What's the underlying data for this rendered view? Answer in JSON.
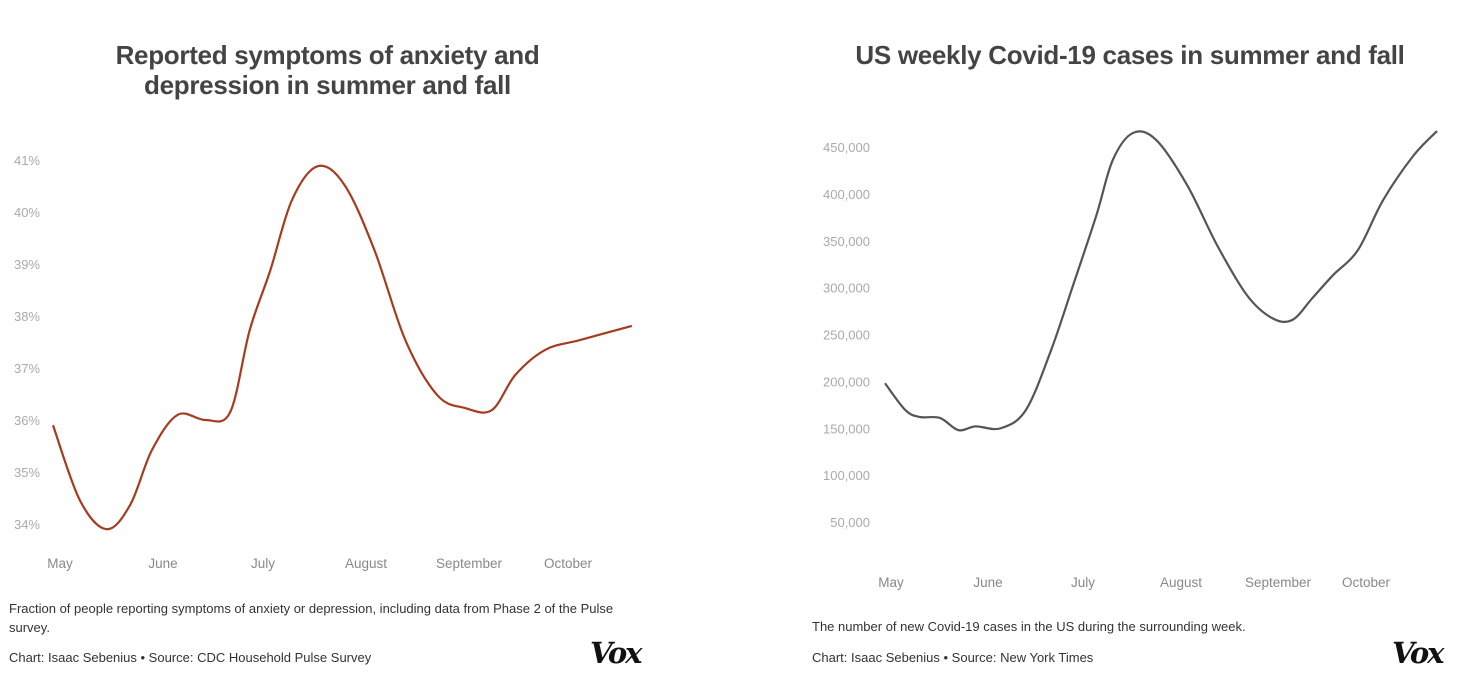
{
  "chart_data": [
    {
      "type": "line",
      "title": "Reported symptoms of anxiety and depression in summer and fall",
      "xlabel": "",
      "ylabel": "",
      "x_tick_labels": [
        "May",
        "June",
        "July",
        "August",
        "September",
        "October"
      ],
      "y_tick_labels": [
        "41%",
        "40%",
        "39%",
        "38%",
        "37%",
        "36%",
        "35%",
        "34%"
      ],
      "y_ticks": [
        41,
        40,
        39,
        38,
        37,
        36,
        35,
        34
      ],
      "ylim": [
        34,
        41
      ],
      "x_unit": "months since start of May",
      "line_color": "#a63c1f",
      "x": [
        0,
        0.26,
        0.52,
        0.75,
        0.96,
        1.21,
        1.48,
        1.72,
        1.91,
        2.11,
        2.32,
        2.57,
        2.83,
        3.12,
        3.42,
        3.73,
        4.0,
        4.26,
        4.49,
        4.78,
        5.12,
        5.62
      ],
      "values": [
        35.9,
        34.46,
        33.9,
        34.37,
        35.42,
        36.1,
        36.0,
        36.15,
        37.73,
        38.88,
        40.23,
        40.88,
        40.52,
        39.27,
        37.54,
        36.48,
        36.23,
        36.19,
        36.87,
        37.35,
        37.54,
        37.81
      ],
      "caption": "Fraction of people reporting symptoms of anxiety or depression, including data from Phase 2 of the Pulse survey.",
      "credit": "Chart: Isaac Sebenius • Source: CDC Household Pulse Survey",
      "logo": "Vox"
    },
    {
      "type": "line",
      "title": "US weekly Covid-19 cases in summer and fall",
      "xlabel": "",
      "ylabel": "",
      "x_tick_labels": [
        "May",
        "June",
        "July",
        "August",
        "September",
        "October"
      ],
      "y_tick_labels": [
        "450,000",
        "400,000",
        "350,000",
        "300,000",
        "250,000",
        "200,000",
        "150,000",
        "100,000",
        "50,000"
      ],
      "y_ticks": [
        450000,
        400000,
        350000,
        300000,
        250000,
        200000,
        150000,
        100000,
        50000
      ],
      "ylim": [
        50000,
        450000
      ],
      "x_unit": "months since start of May",
      "line_color": "#555555",
      "x": [
        0,
        0.21,
        0.36,
        0.57,
        0.76,
        0.94,
        1.2,
        1.46,
        1.72,
        1.95,
        2.19,
        2.36,
        2.57,
        2.81,
        3.13,
        3.44,
        3.75,
        4.01,
        4.22,
        4.43,
        4.64,
        4.9,
        5.16,
        5.47,
        5.72
      ],
      "values": [
        198000,
        169500,
        162000,
        161000,
        148000,
        152000,
        150000,
        169500,
        233000,
        302800,
        377000,
        436000,
        465000,
        457500,
        409500,
        345500,
        292000,
        267600,
        265500,
        289000,
        313000,
        340000,
        393000,
        440000,
        467000
      ],
      "caption": "The number of new Covid-19 cases in the US during the surrounding week.",
      "credit": "Chart: Isaac Sebenius • Source: New York Times",
      "logo": "Vox"
    }
  ]
}
